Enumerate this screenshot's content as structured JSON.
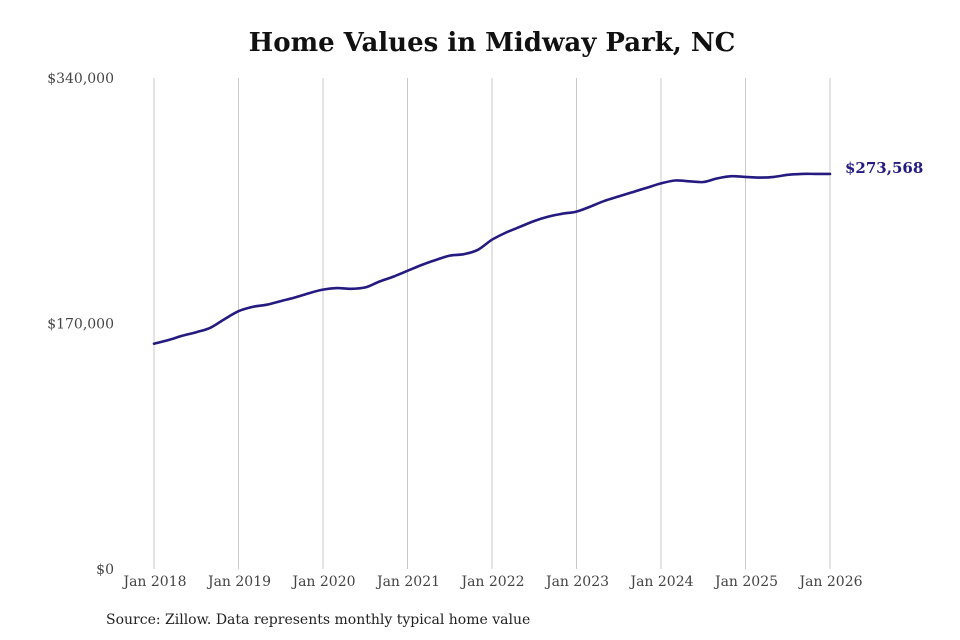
{
  "colors": {
    "line": "#241a80",
    "grid": "#c9c9c9",
    "text": "#444444"
  },
  "chart_data": {
    "type": "line",
    "title": "Home Values in Midway Park, NC",
    "xlabel": "",
    "ylabel": "",
    "ylim": [
      0,
      340000
    ],
    "y_ticks": [
      0,
      170000,
      340000
    ],
    "y_tick_labels": [
      "$0",
      "$170,000",
      "$340,000"
    ],
    "x_range": [
      "2018-01",
      "2026-01"
    ],
    "x_ticks": [
      "2018-01",
      "2019-01",
      "2020-01",
      "2021-01",
      "2022-01",
      "2023-01",
      "2024-01",
      "2025-01",
      "2026-01"
    ],
    "x_tick_labels": [
      "Jan 2018",
      "Jan 2019",
      "Jan 2020",
      "Jan 2021",
      "Jan 2022",
      "Jan 2023",
      "Jan 2024",
      "Jan 2025",
      "Jan 2026"
    ],
    "grid": "vertical",
    "legend": "none",
    "end_label": "$273,568",
    "series": [
      {
        "x": [
          "2018-01",
          "2018-03",
          "2018-05",
          "2018-07",
          "2018-09",
          "2018-11",
          "2019-01",
          "2019-03",
          "2019-05",
          "2019-07",
          "2019-09",
          "2019-11",
          "2020-01",
          "2020-03",
          "2020-05",
          "2020-07",
          "2020-09",
          "2020-11",
          "2021-01",
          "2021-03",
          "2021-05",
          "2021-07",
          "2021-09",
          "2021-11",
          "2022-01",
          "2022-03",
          "2022-05",
          "2022-07",
          "2022-09",
          "2022-11",
          "2023-01",
          "2023-03",
          "2023-05",
          "2023-07",
          "2023-09",
          "2023-11",
          "2024-01",
          "2024-03",
          "2024-05",
          "2024-07",
          "2024-09",
          "2024-11",
          "2025-01",
          "2025-03",
          "2025-05",
          "2025-07",
          "2025-09",
          "2025-11",
          "2026-01"
        ],
        "y": [
          156000,
          158500,
          161500,
          164000,
          167000,
          173000,
          178500,
          181500,
          183000,
          185500,
          188000,
          191000,
          193500,
          194500,
          194000,
          195000,
          199000,
          202500,
          206500,
          210500,
          214000,
          217000,
          218000,
          221000,
          228000,
          233000,
          237000,
          241000,
          244000,
          246000,
          247500,
          251000,
          255000,
          258000,
          261000,
          264000,
          267000,
          269000,
          268500,
          268000,
          270500,
          272000,
          271500,
          271000,
          271500,
          273000,
          273568,
          273568,
          273568
        ]
      }
    ]
  },
  "source_note": "Source: Zillow. Data represents monthly typical home value"
}
